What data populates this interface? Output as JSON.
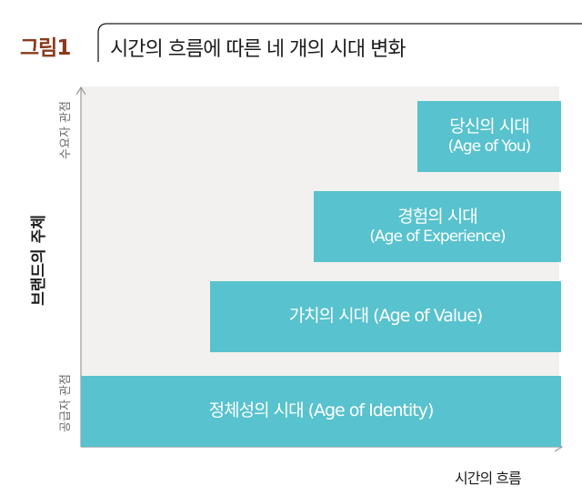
{
  "figure": {
    "label": "그림1",
    "title": "시간의 흐름에 따른 네 개의 시대 변화"
  },
  "axes": {
    "y_title": "브랜드의 주체",
    "y_top": "수요자 관점",
    "y_bottom": "공급자 관점",
    "x_title": "시간의 흐름"
  },
  "eras": {
    "you": {
      "title": "당신의 시대",
      "subtitle": "(Age of You)"
    },
    "experience": {
      "title": "경험의 시대",
      "subtitle": "(Age of Experience)"
    },
    "value": {
      "label": "가치의 시대 (Age of Value)"
    },
    "identity": {
      "label": "정체성의 시대 (Age of Identity)"
    }
  },
  "colors": {
    "block": "#58c2ce",
    "background": "#f2f1ef",
    "label_accent": "#8b3a1e"
  }
}
